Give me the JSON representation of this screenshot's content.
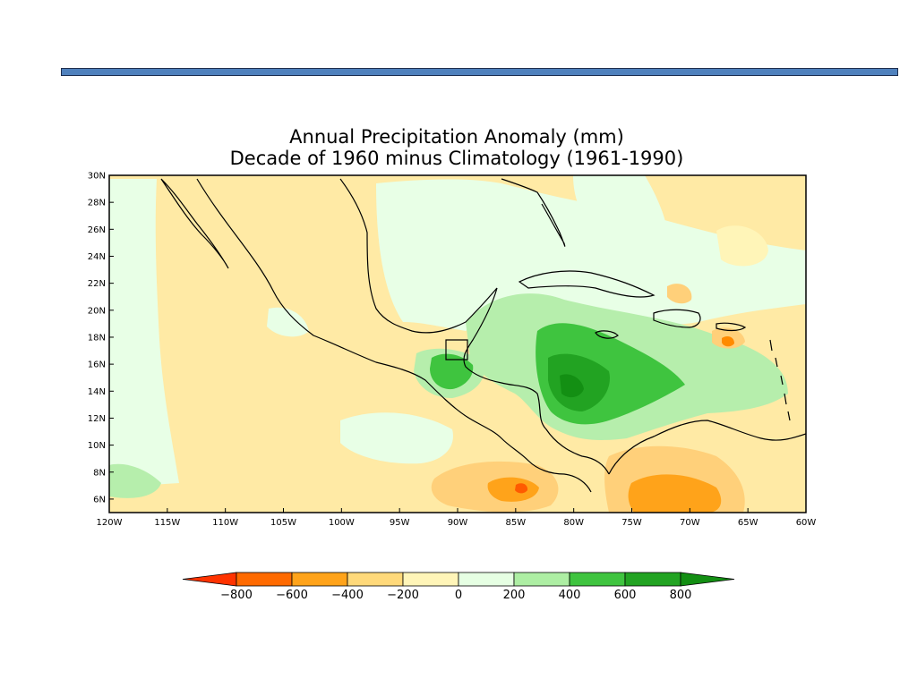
{
  "slide": {
    "accent_color": "#4f81bd"
  },
  "map": {
    "title_line1": "Annual Precipitation Anomaly (mm)",
    "title_line2": "Decade of 1960 minus Climatology (1961-1990)",
    "region": "Central America and Caribbean",
    "lon_range": [
      -120,
      -60
    ],
    "lat_range": [
      5,
      30
    ],
    "lon_ticks": [
      "120W",
      "115W",
      "110W",
      "105W",
      "100W",
      "95W",
      "90W",
      "85W",
      "80W",
      "75W",
      "70W",
      "65W",
      "60W"
    ],
    "lat_ticks": [
      "30N",
      "28N",
      "26N",
      "24N",
      "22N",
      "20N",
      "18N",
      "16N",
      "14N",
      "12N",
      "10N",
      "8N",
      "6N"
    ],
    "anomaly_features": [
      {
        "label": "Caribbean Sea positive anomaly",
        "lon": -80,
        "lat": 14.5,
        "value_mm": 800
      },
      {
        "label": "Guatemala positive anomaly",
        "lon": -90.5,
        "lat": 15.5,
        "value_mm": 600
      },
      {
        "label": "Pacific off Costa Rica negative anomaly",
        "lon": -84,
        "lat": 6.8,
        "value_mm": -600
      },
      {
        "label": "Northern South America negative anomaly",
        "lon": -72,
        "lat": 5.5,
        "value_mm": -400
      },
      {
        "label": "Puerto Rico negative anomaly",
        "lon": -67,
        "lat": 17.8,
        "value_mm": -400
      }
    ]
  },
  "colorbar": {
    "labels": [
      "-800",
      "-600",
      "-400",
      "-200",
      "0",
      "200",
      "400",
      "600",
      "800"
    ],
    "colors": [
      "#ff3300",
      "#ff6a00",
      "#ffa31a",
      "#ffd97a",
      "#fff5b8",
      "#e6ffe3",
      "#adeea3",
      "#3fc43f",
      "#22a322",
      "#138f13"
    ]
  }
}
